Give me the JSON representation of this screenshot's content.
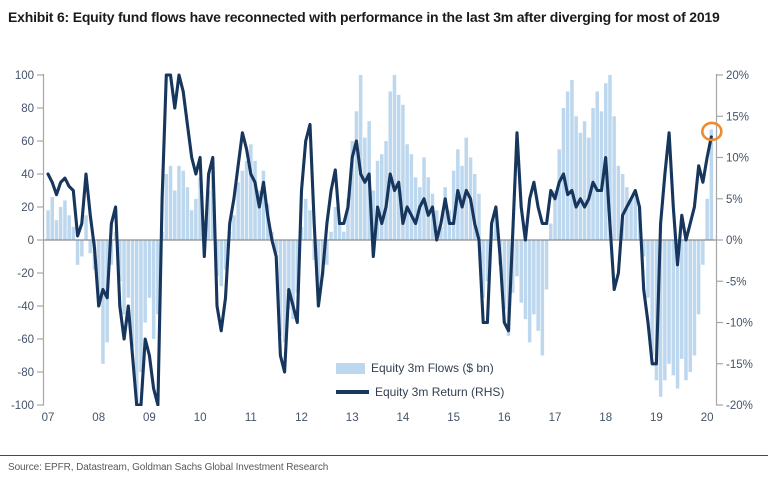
{
  "title": "Exhibit 6: Equity fund flows have reconnected with performance in the last 3m after diverging for most of 2019",
  "source": "Source: EPFR, Datastream, Goldman Sachs Global Investment Research",
  "colors": {
    "flows_fill": "#bcd7ee",
    "return_line": "#17365d",
    "highlight_circle": "#ed8b2f",
    "axis_line": "#a6a6a6",
    "zero_line": "#8c8c8c",
    "tick_text": "#44546a",
    "title_text": "#1b1b1b",
    "source_text": "#565a5e",
    "background": "#ffffff"
  },
  "chart_data": {
    "type": "bar",
    "subtype": "bar-plus-line-dual-axis",
    "title": "Exhibit 6: Equity fund flows have reconnected with performance in the last 3m after diverging for most of 2019",
    "xlabel": "",
    "ylabel_left": "Equity 3m Flows ($ bn)",
    "ylabel_right": "Equity 3m Return (RHS)",
    "x_start_year": 2007.0,
    "x_step_years": 0.0833333,
    "x_tick_labels": [
      "07",
      "08",
      "09",
      "10",
      "11",
      "12",
      "13",
      "14",
      "15",
      "16",
      "17",
      "18",
      "19",
      "20"
    ],
    "left_axis": {
      "min": -100,
      "max": 100,
      "ticks": [
        {
          "v": 100,
          "label": "100"
        },
        {
          "v": 80,
          "label": "80"
        },
        {
          "v": 60,
          "label": "60"
        },
        {
          "v": 40,
          "label": "40"
        },
        {
          "v": 20,
          "label": "20"
        },
        {
          "v": 0,
          "label": "0"
        },
        {
          "v": -20,
          "label": "-20"
        },
        {
          "v": -40,
          "label": "-40"
        },
        {
          "v": -60,
          "label": "-60"
        },
        {
          "v": -80,
          "label": "-80"
        },
        {
          "v": -100,
          "label": "-100"
        }
      ]
    },
    "right_axis": {
      "min": -20,
      "max": 20,
      "ticks": [
        {
          "v": 20,
          "label": "20%"
        },
        {
          "v": 15,
          "label": "15%"
        },
        {
          "v": 10,
          "label": "10%"
        },
        {
          "v": 5,
          "label": "5%"
        },
        {
          "v": 0,
          "label": "0%"
        },
        {
          "v": -5,
          "label": "-5%"
        },
        {
          "v": -10,
          "label": "-10%"
        },
        {
          "v": -15,
          "label": "-15%"
        },
        {
          "v": -20,
          "label": "-20%"
        }
      ]
    },
    "series": [
      {
        "name": "Equity 3m Flows ($ bn)",
        "type": "bar",
        "axis": "left",
        "color": "#bcd7ee",
        "values": [
          18,
          26,
          12,
          20,
          24,
          15,
          8,
          -15,
          -10,
          15,
          -8,
          -18,
          -40,
          -75,
          -62,
          -15,
          5,
          -25,
          -45,
          -35,
          -65,
          -100,
          -80,
          -50,
          -35,
          -60,
          -45,
          5,
          40,
          45,
          30,
          45,
          42,
          32,
          18,
          25,
          38,
          12,
          30,
          42,
          -22,
          -28,
          -18,
          5,
          15,
          35,
          42,
          48,
          58,
          48,
          30,
          42,
          22,
          5,
          -8,
          -58,
          -62,
          -42,
          -48,
          -32,
          8,
          25,
          18,
          -12,
          -28,
          -22,
          -15,
          5,
          20,
          10,
          5,
          25,
          60,
          78,
          100,
          62,
          72,
          30,
          48,
          52,
          60,
          90,
          100,
          88,
          82,
          58,
          52,
          38,
          32,
          50,
          38,
          28,
          18,
          8,
          32,
          18,
          42,
          55,
          45,
          62,
          50,
          40,
          28,
          -35,
          -25,
          5,
          18,
          -15,
          -42,
          -58,
          -32,
          -22,
          -38,
          -48,
          -62,
          -45,
          -55,
          -70,
          -30,
          10,
          30,
          55,
          80,
          90,
          97,
          75,
          65,
          72,
          62,
          80,
          90,
          78,
          95,
          100,
          75,
          45,
          40,
          32,
          25,
          28,
          20,
          -10,
          -35,
          -70,
          -85,
          -95,
          -85,
          -75,
          -82,
          -90,
          -72,
          -85,
          -80,
          -70,
          -45,
          -15,
          25,
          67
        ]
      },
      {
        "name": "Equity 3m Return (RHS)",
        "type": "line",
        "axis": "right",
        "color": "#17365d",
        "values": [
          8,
          7,
          5.5,
          7,
          7.5,
          6.5,
          6,
          0.5,
          2,
          8,
          3,
          -1,
          -8,
          -6,
          -7,
          2,
          4,
          -8,
          -12,
          -8,
          -14,
          -20,
          -20,
          -12,
          -14,
          -18,
          -20,
          5,
          20,
          20,
          16,
          20,
          18,
          14,
          10,
          8,
          10,
          -2,
          8,
          10,
          -8,
          -11,
          -7,
          2,
          5,
          9,
          13,
          11,
          8,
          7,
          4,
          7,
          3,
          0,
          -2,
          -14,
          -16,
          -6,
          -8,
          -10,
          6,
          12,
          14,
          2,
          -8,
          -4,
          2,
          6,
          8.5,
          2,
          2,
          4,
          10,
          12,
          8,
          7,
          8,
          -2,
          4,
          2,
          4,
          8,
          6,
          7,
          2,
          4,
          3,
          2,
          4,
          5,
          3,
          4,
          0,
          2,
          5,
          2,
          2,
          6,
          4,
          6,
          5,
          2,
          0,
          -10,
          -10,
          2,
          4,
          -2,
          -10,
          -11,
          1,
          13,
          4,
          0,
          5,
          7,
          4,
          2,
          2,
          6,
          5,
          7,
          8,
          5.5,
          6,
          4,
          5,
          4,
          5,
          7,
          6,
          6,
          10,
          2,
          -6,
          -4,
          3,
          4,
          5,
          6,
          4,
          -6,
          -10,
          -15,
          -15,
          2,
          8,
          13,
          4,
          -3,
          3,
          0,
          2,
          4,
          9,
          7,
          10,
          12.5
        ]
      }
    ],
    "legend": {
      "position": "inside-bottom-center",
      "entries": [
        "Equity 3m Flows ($ bn)",
        "Equity 3m Return (RHS)"
      ]
    },
    "annotation": {
      "type": "circle",
      "color": "#ed8b2f",
      "target_series": "Equity 3m Flows ($ bn)",
      "target_point_index": 157,
      "target_value_bn": 67,
      "note": "highlights latest 3m flows bar reconnecting with returns"
    },
    "grid": false
  }
}
